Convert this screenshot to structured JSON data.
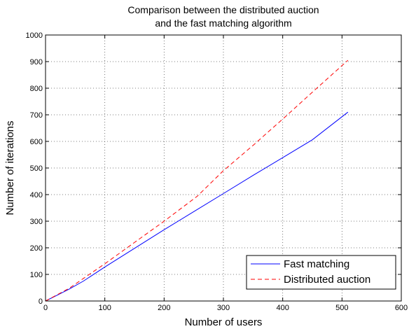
{
  "chart_data": {
    "type": "line",
    "title": [
      "Comparison between the distributed auction",
      "and the fast matching algorithm"
    ],
    "xlabel": "Number of users",
    "ylabel": "Number of iterations",
    "xlim": [
      0,
      600
    ],
    "ylim": [
      0,
      1000
    ],
    "xticks": [
      0,
      100,
      200,
      300,
      400,
      500,
      600
    ],
    "yticks": [
      0,
      100,
      200,
      300,
      400,
      500,
      600,
      700,
      800,
      900,
      1000
    ],
    "grid": true,
    "legend_position": "bottom-right",
    "series": [
      {
        "name": "Fast matching",
        "color": "#0000ff",
        "dash": "solid",
        "x": [
          0,
          20,
          40,
          64,
          100,
          150,
          200,
          250,
          300,
          350,
          400,
          450,
          510
        ],
        "y": [
          0,
          22,
          45,
          75,
          128,
          198,
          268,
          336,
          404,
          472,
          539,
          606,
          710
        ]
      },
      {
        "name": "Distributed auction",
        "color": "#ff0000",
        "dash": "dashed",
        "x": [
          0,
          20,
          40,
          64,
          100,
          150,
          200,
          256,
          300,
          350,
          400,
          450,
          510
        ],
        "y": [
          0,
          24,
          48,
          85,
          140,
          220,
          300,
          394,
          490,
          585,
          684,
          785,
          905
        ]
      }
    ]
  }
}
